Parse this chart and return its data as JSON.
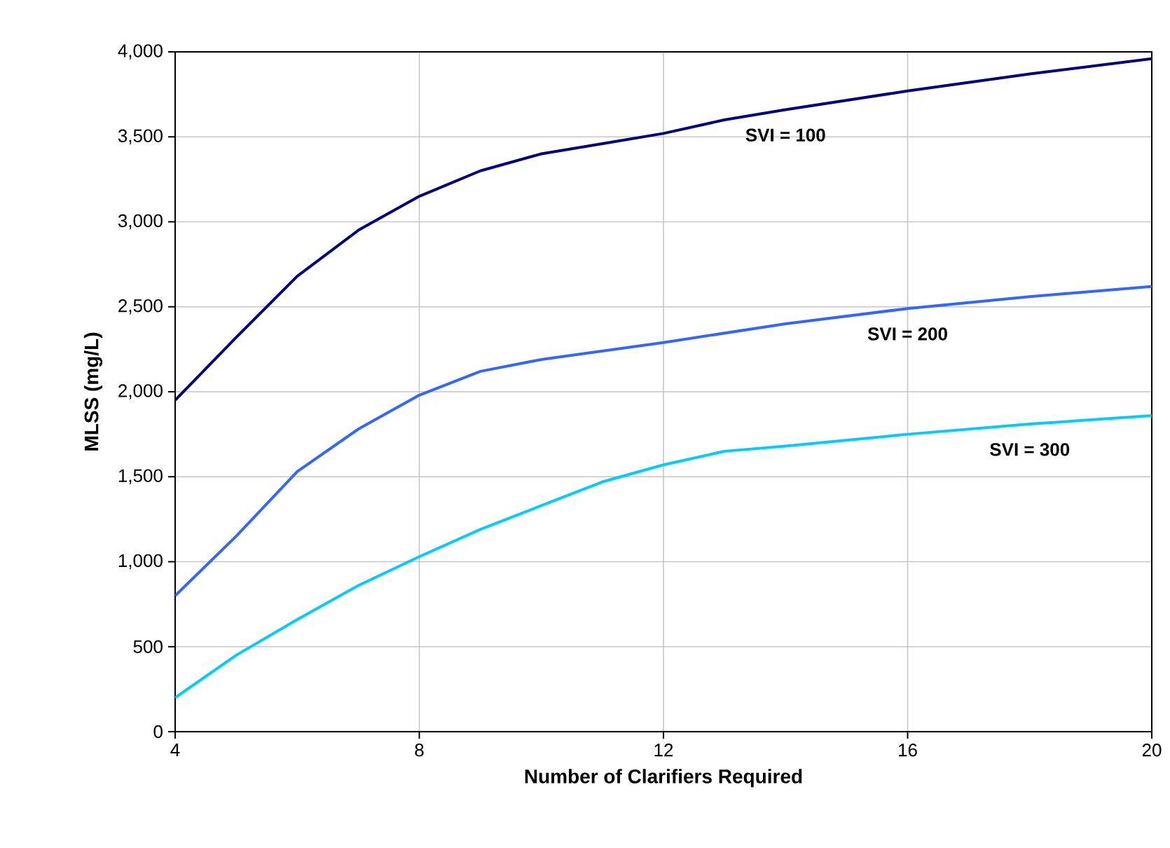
{
  "chart_data": {
    "type": "line",
    "xlabel": "Number of Clarifiers Required",
    "ylabel": "MLSS (mg/L)",
    "xlim": [
      4,
      20
    ],
    "xticks": [
      4,
      8,
      12,
      16,
      20
    ],
    "ylim": [
      0,
      4000
    ],
    "yticks": [
      0,
      500,
      {
        "value": 1000,
        "label": "1,000"
      },
      {
        "value": 1500,
        "label": "1,500"
      },
      {
        "value": 2000,
        "label": "2,000"
      },
      {
        "value": 2500,
        "label": "2,500"
      },
      {
        "value": 3000,
        "label": "3,000"
      },
      {
        "value": 3500,
        "label": "3,500"
      },
      {
        "value": 4000,
        "label": "4,000"
      }
    ],
    "grid": true,
    "marker": "none",
    "line_style": "solid",
    "series": [
      {
        "name": "SVI = 100",
        "color": "#000080",
        "x": [
          4,
          5,
          6,
          7,
          8,
          9,
          10,
          11,
          12,
          13,
          14,
          16,
          18,
          20
        ],
        "values": [
          1950,
          2320,
          2680,
          2950,
          3150,
          3300,
          3400,
          3460,
          3520,
          3600,
          3660,
          3770,
          3870,
          3960
        ]
      },
      {
        "name": "SVI = 200",
        "color": "#3366ff",
        "x": [
          4,
          5,
          6,
          7,
          8,
          9,
          10,
          12,
          14,
          16,
          18,
          20
        ],
        "values": [
          800,
          1150,
          1530,
          1780,
          1980,
          2120,
          2190,
          2290,
          2400,
          2490,
          2560,
          2620
        ]
      },
      {
        "name": "SVI = 300",
        "color": "#00ccff",
        "x": [
          4,
          5,
          6,
          7,
          8,
          9,
          10,
          11,
          12,
          13,
          14,
          16,
          18,
          20
        ],
        "values": [
          200,
          450,
          660,
          860,
          1030,
          1190,
          1330,
          1470,
          1570,
          1650,
          1680,
          1750,
          1810,
          1860
        ]
      }
    ]
  }
}
